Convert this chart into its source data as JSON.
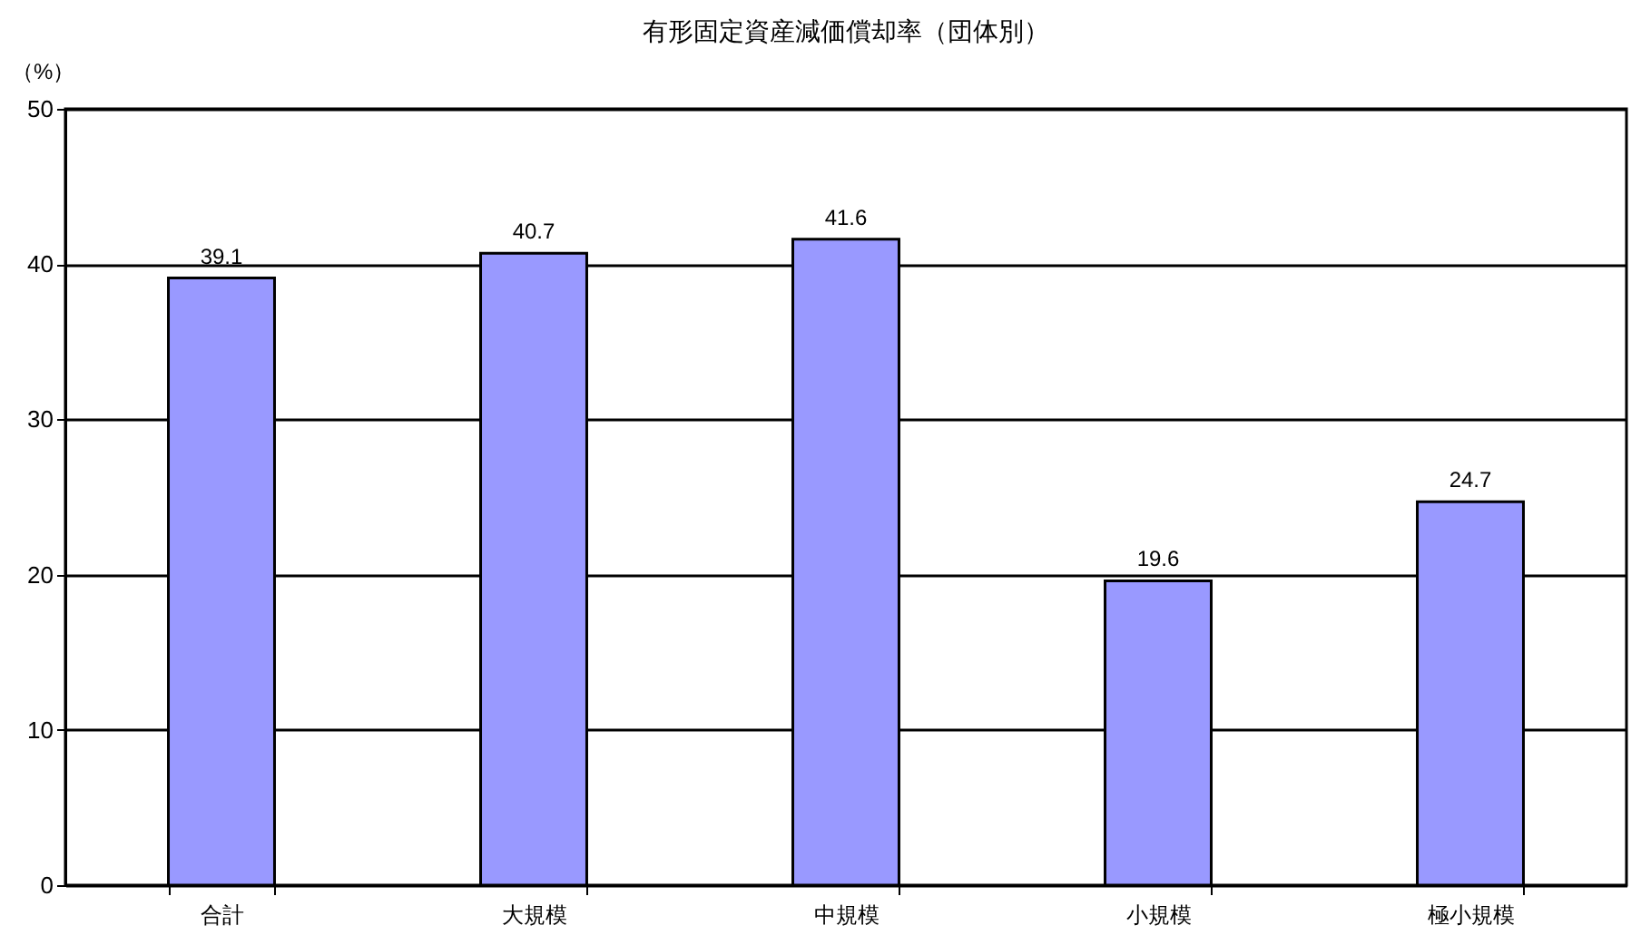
{
  "chart_data": {
    "type": "bar",
    "title": "有形固定資産減価償却率（団体別）",
    "ylabel": "（%）",
    "categories": [
      "合計",
      "大規模",
      "中規模",
      "小規模",
      "極小規模"
    ],
    "values": [
      39.1,
      40.7,
      41.6,
      19.6,
      24.7
    ],
    "color": "#9999ff",
    "ylim": [
      0,
      50
    ],
    "yticks": [
      0,
      10,
      20,
      30,
      40,
      50
    ],
    "grid": "y",
    "data_labels": true
  }
}
